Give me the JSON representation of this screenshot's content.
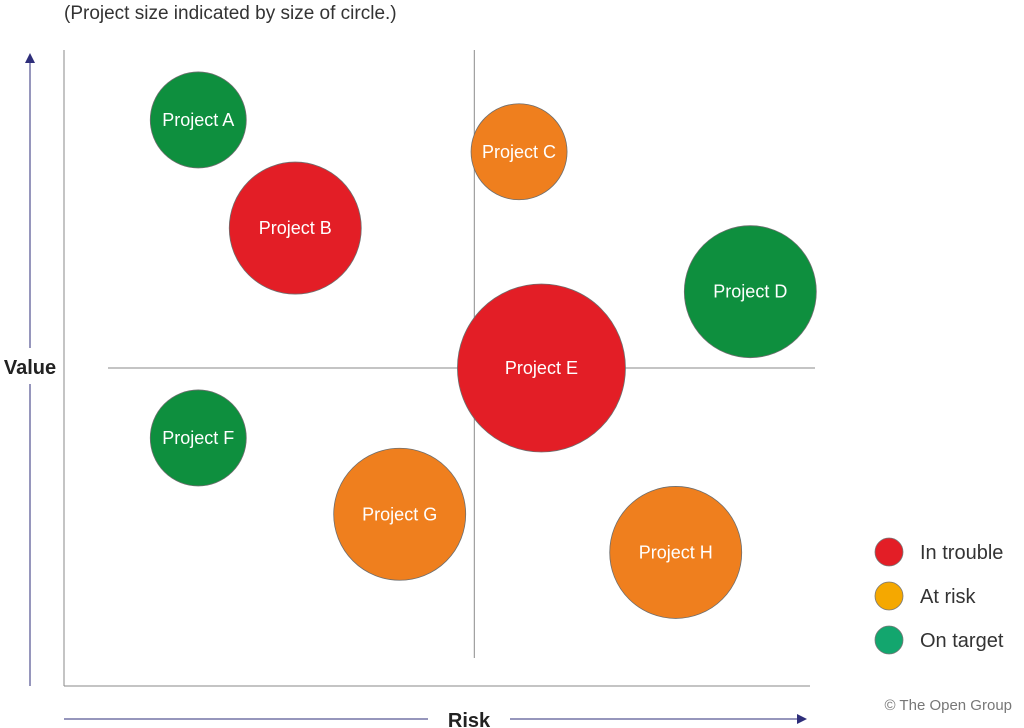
{
  "chart_data": {
    "type": "scatter",
    "subtitle": "(Project size indicated by size of circle.)",
    "xlabel": "Risk",
    "ylabel": "Value",
    "xlim": [
      0,
      10
    ],
    "ylim": [
      0,
      10
    ],
    "quadrant_divider": {
      "x": 5.5,
      "y": 5.0
    },
    "status_colors": {
      "In trouble": "#e31e26",
      "At risk": "#ef7f1e",
      "On target": "#0e8f3e"
    },
    "legend": [
      {
        "label": "In trouble",
        "color": "#e31e26"
      },
      {
        "label": "At risk",
        "color": "#f5a800"
      },
      {
        "label": "On target",
        "color": "#13a66e"
      }
    ],
    "series": [
      {
        "name": "Project A",
        "x": 1.8,
        "y": 8.9,
        "size": 2.4,
        "status": "On target"
      },
      {
        "name": "Project B",
        "x": 3.1,
        "y": 7.2,
        "size": 3.3,
        "status": "In trouble"
      },
      {
        "name": "Project C",
        "x": 6.1,
        "y": 8.4,
        "size": 2.4,
        "status": "At risk"
      },
      {
        "name": "Project D",
        "x": 9.2,
        "y": 6.2,
        "size": 3.3,
        "status": "On target"
      },
      {
        "name": "Project E",
        "x": 6.4,
        "y": 5.0,
        "size": 4.2,
        "status": "In trouble"
      },
      {
        "name": "Project F",
        "x": 1.8,
        "y": 3.9,
        "size": 2.4,
        "status": "On target"
      },
      {
        "name": "Project G",
        "x": 4.5,
        "y": 2.7,
        "size": 3.3,
        "status": "At risk"
      },
      {
        "name": "Project H",
        "x": 8.2,
        "y": 2.1,
        "size": 3.3,
        "status": "At risk"
      }
    ]
  },
  "footer": {
    "copyright": "© The Open Group"
  }
}
